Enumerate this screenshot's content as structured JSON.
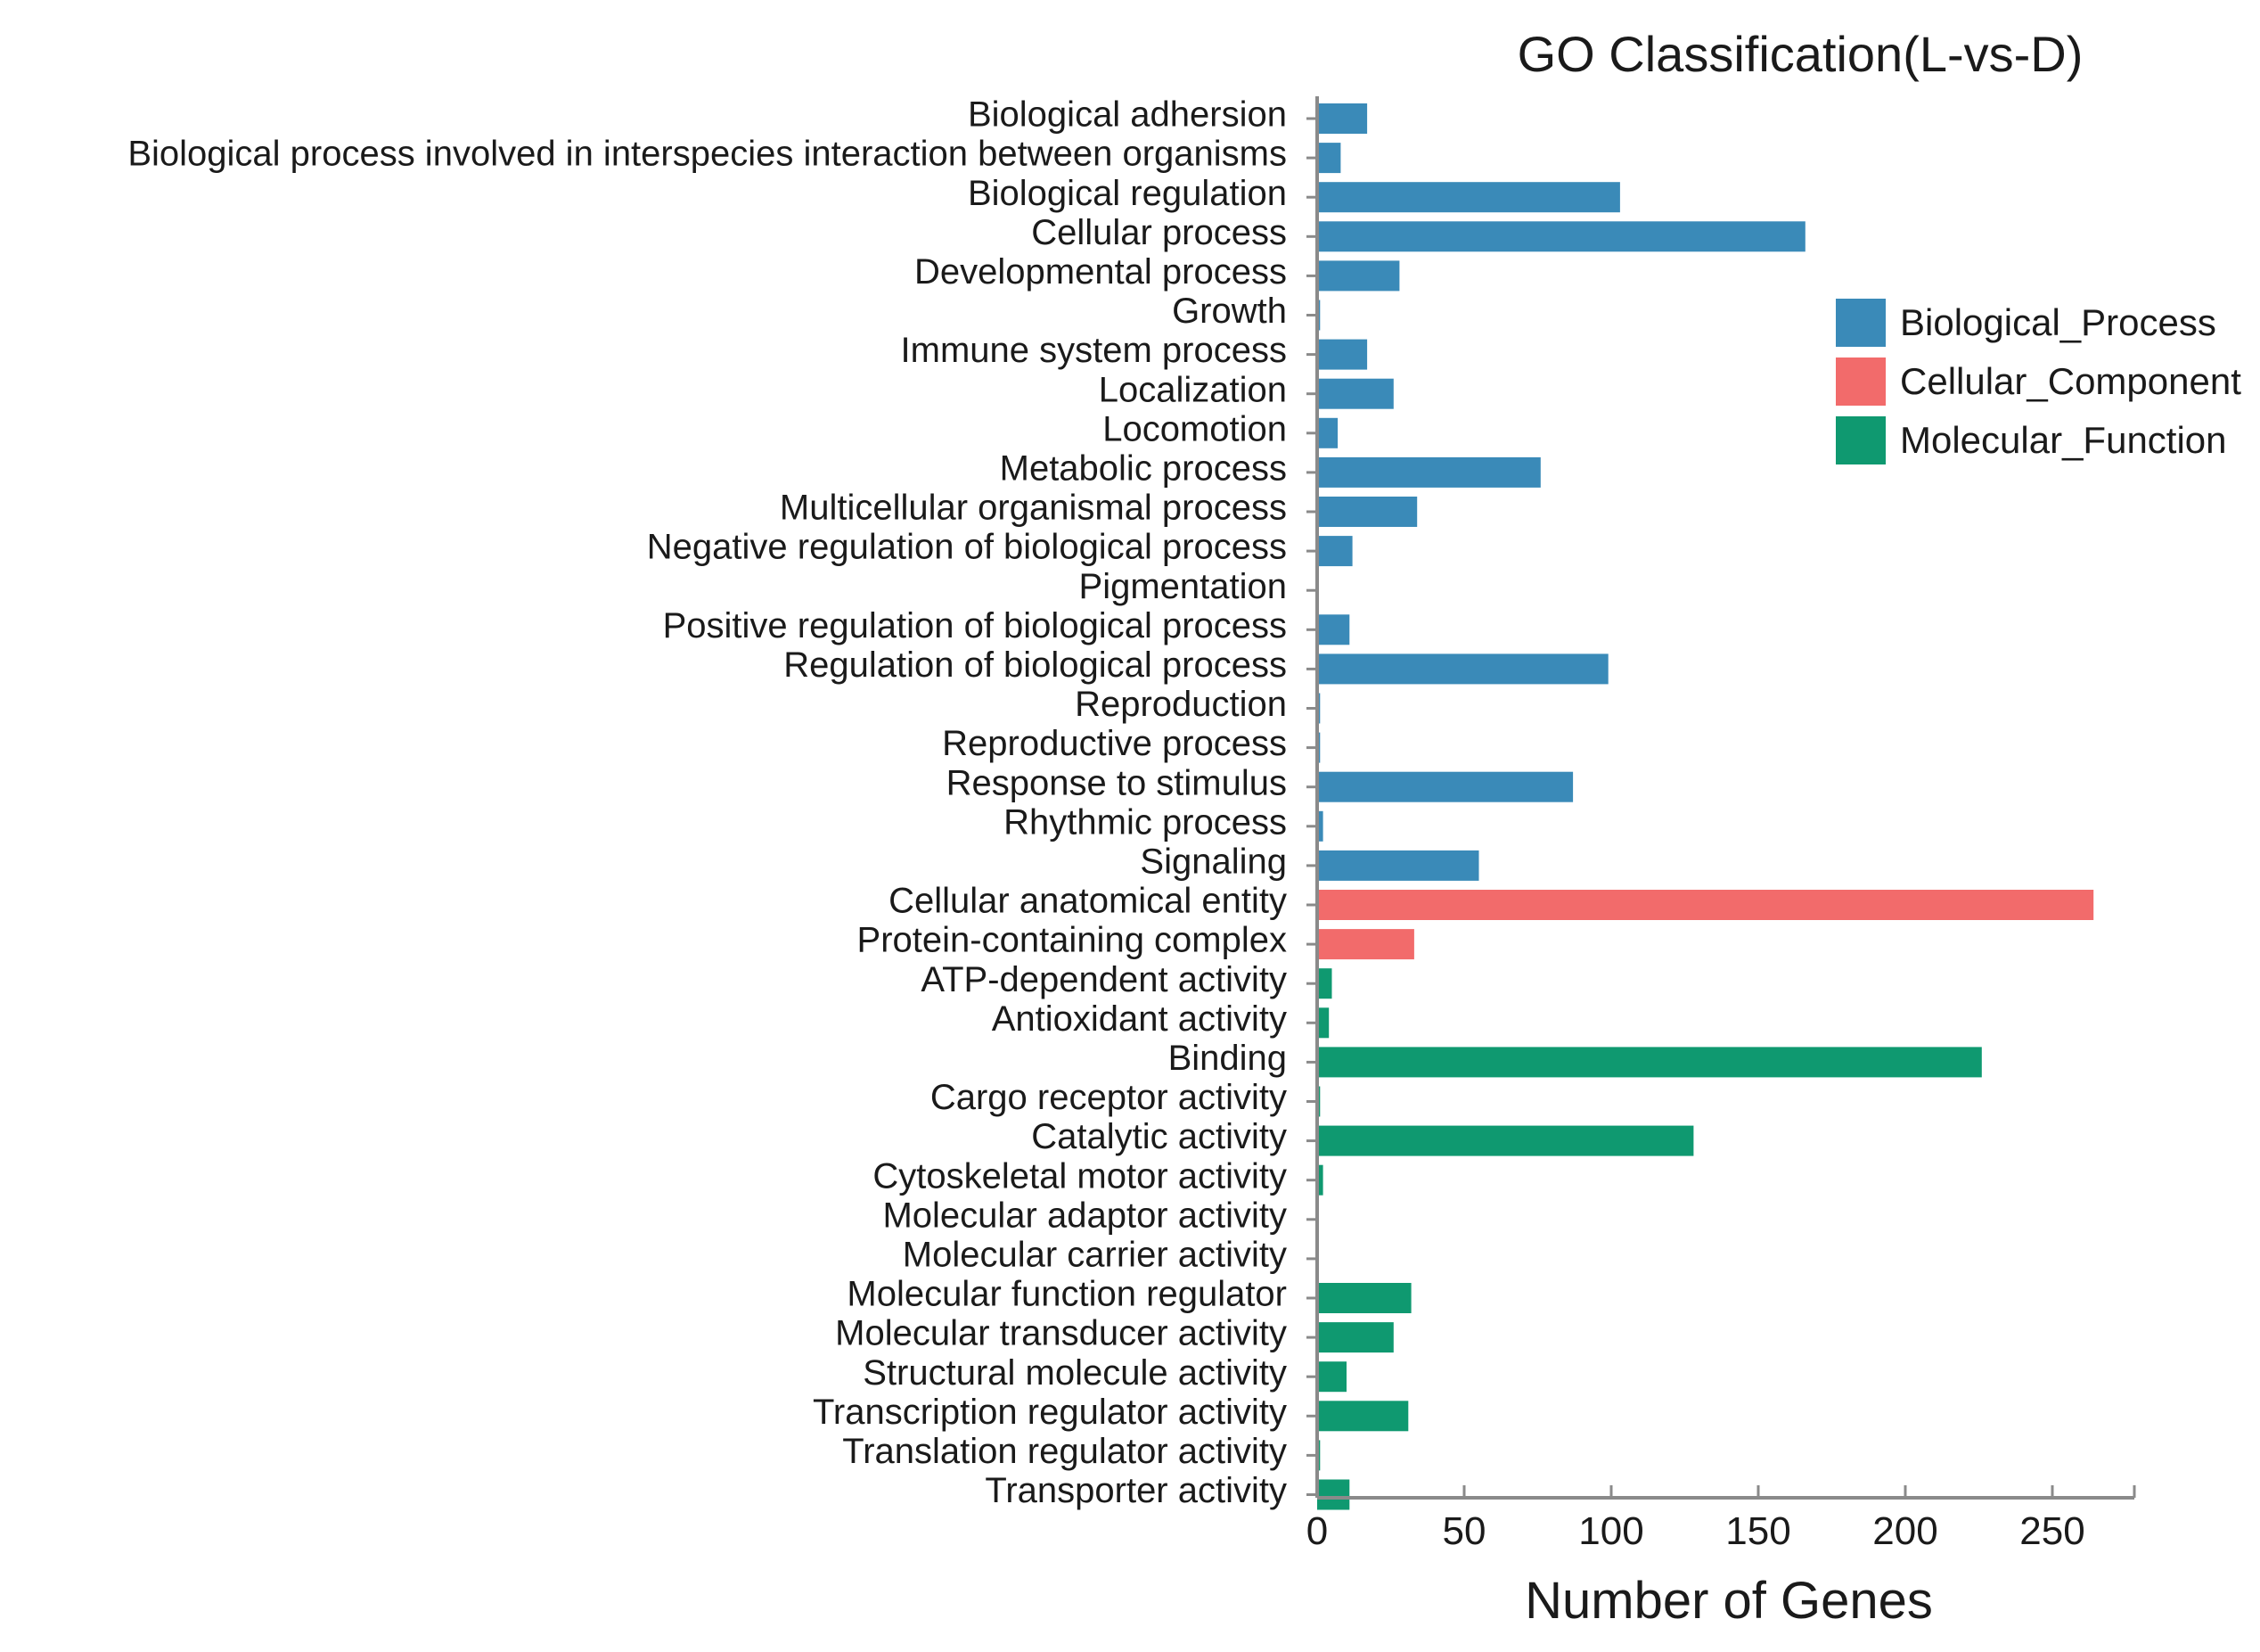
{
  "chart_data": {
    "type": "bar",
    "orientation": "horizontal",
    "title": "GO Classification(L-vs-D)",
    "xlabel": "Number of Genes",
    "ylabel": "",
    "xlim": [
      0,
      280
    ],
    "xticks": [
      0,
      50,
      100,
      150,
      200,
      250
    ],
    "legend": {
      "placement": "right",
      "entries": [
        {
          "name": "Biological_Process",
          "color": "#3a8ab8"
        },
        {
          "name": "Cellular_Component",
          "color": "#f26b6b"
        },
        {
          "name": "Molecular_Function",
          "color": "#0f9970"
        }
      ]
    },
    "bars": [
      {
        "category": "Biological adhersion",
        "value": 17,
        "group": "Biological_Process"
      },
      {
        "category": "Biological process involved in interspecies interaction between organisms",
        "value": 8,
        "group": "Biological_Process"
      },
      {
        "category": "Biological regulation",
        "value": 103,
        "group": "Biological_Process"
      },
      {
        "category": "Cellular process",
        "value": 166,
        "group": "Biological_Process"
      },
      {
        "category": "Developmental process",
        "value": 28,
        "group": "Biological_Process"
      },
      {
        "category": "Growth",
        "value": 1,
        "group": "Biological_Process"
      },
      {
        "category": "Immune  system process",
        "value": 17,
        "group": "Biological_Process"
      },
      {
        "category": "Localization",
        "value": 26,
        "group": "Biological_Process"
      },
      {
        "category": "Locomotion",
        "value": 7,
        "group": "Biological_Process"
      },
      {
        "category": "Metabolic process",
        "value": 76,
        "group": "Biological_Process"
      },
      {
        "category": "Multicellular  organismal process",
        "value": 34,
        "group": "Biological_Process"
      },
      {
        "category": "Negative regulation of biological process",
        "value": 12,
        "group": "Biological_Process"
      },
      {
        "category": "Pigmentation",
        "value": 0,
        "group": "Biological_Process"
      },
      {
        "category": "Positive regulation of biological process",
        "value": 11,
        "group": "Biological_Process"
      },
      {
        "category": "Regulation of biological process",
        "value": 99,
        "group": "Biological_Process"
      },
      {
        "category": "Reproduction",
        "value": 1,
        "group": "Biological_Process"
      },
      {
        "category": "Reproductive process",
        "value": 1,
        "group": "Biological_Process"
      },
      {
        "category": "Response to stimulus",
        "value": 87,
        "group": "Biological_Process"
      },
      {
        "category": "Rhythmic process",
        "value": 2,
        "group": "Biological_Process"
      },
      {
        "category": "Signaling",
        "value": 55,
        "group": "Biological_Process"
      },
      {
        "category": "Cellular anatomical entity",
        "value": 264,
        "group": "Cellular_Component"
      },
      {
        "category": "Protein-containing complex",
        "value": 33,
        "group": "Cellular_Component"
      },
      {
        "category": "ATP-dependent activity",
        "value": 5,
        "group": "Molecular_Function"
      },
      {
        "category": "Antioxidant activity",
        "value": 4,
        "group": "Molecular_Function"
      },
      {
        "category": "Binding",
        "value": 226,
        "group": "Molecular_Function"
      },
      {
        "category": "Cargo receptor activity",
        "value": 1,
        "group": "Molecular_Function"
      },
      {
        "category": "Catalytic activity",
        "value": 128,
        "group": "Molecular_Function"
      },
      {
        "category": "Cytoskeletal motor activity",
        "value": 2,
        "group": "Molecular_Function"
      },
      {
        "category": "Molecular adaptor activity",
        "value": 0,
        "group": "Molecular_Function"
      },
      {
        "category": "Molecular carrier activity",
        "value": 0,
        "group": "Molecular_Function"
      },
      {
        "category": "Molecular function regulator",
        "value": 32,
        "group": "Molecular_Function"
      },
      {
        "category": "Molecular transducer activity",
        "value": 26,
        "group": "Molecular_Function"
      },
      {
        "category": "Structural molecule activity",
        "value": 10,
        "group": "Molecular_Function"
      },
      {
        "category": "Transcription regulator activity",
        "value": 31,
        "group": "Molecular_Function"
      },
      {
        "category": "Translation regulator activity",
        "value": 1,
        "group": "Molecular_Function"
      },
      {
        "category": "Transporter activity",
        "value": 11,
        "group": "Molecular_Function"
      }
    ]
  }
}
